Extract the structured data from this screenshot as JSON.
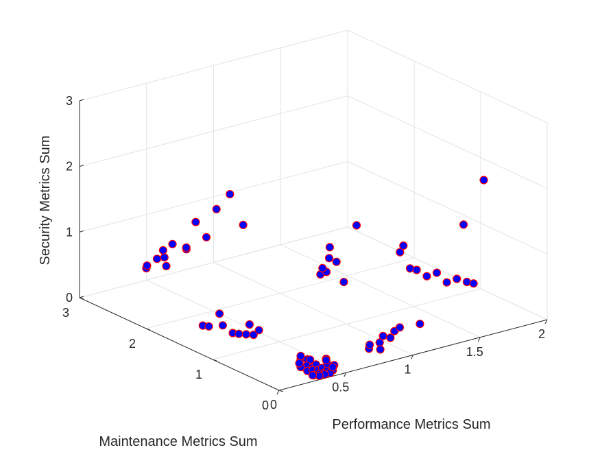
{
  "chart_data": {
    "type": "scatter3d",
    "xlabel": "Performance Metrics Sum",
    "ylabel": "Maintenance Metrics Sum",
    "zlabel": "Security Metrics Sum",
    "xlim": [
      0,
      2
    ],
    "ylim": [
      0,
      3
    ],
    "zlim": [
      0,
      3
    ],
    "xticks": [
      0,
      0.5,
      1,
      1.5,
      2
    ],
    "yticks": [
      0,
      1,
      2,
      3
    ],
    "zticks": [
      0,
      1,
      2,
      3
    ],
    "grid": true,
    "marker_face_color": "#0000ff",
    "marker_edge_color": "#ff0000",
    "points": [
      [
        0.25,
        2.5,
        0.55
      ],
      [
        0.28,
        2.55,
        0.55
      ],
      [
        0.33,
        2.5,
        0.65
      ],
      [
        0.3,
        2.3,
        0.65
      ],
      [
        0.36,
        2.45,
        0.68
      ],
      [
        0.4,
        2.55,
        0.72
      ],
      [
        0.42,
        2.45,
        0.85
      ],
      [
        0.4,
        2.2,
        0.9
      ],
      [
        0.35,
        2.1,
        1.0
      ],
      [
        0.45,
        2.0,
        1.15
      ],
      [
        0.42,
        2.1,
        1.35
      ],
      [
        0.55,
        2.05,
        1.5
      ],
      [
        0.7,
        2.15,
        1.6
      ],
      [
        0.65,
        1.85,
        1.3
      ],
      [
        0.2,
        1.55,
        0.15
      ],
      [
        0.22,
        1.5,
        0.15
      ],
      [
        0.25,
        1.35,
        0.22
      ],
      [
        0.3,
        1.5,
        0.3
      ],
      [
        0.3,
        1.3,
        0.1
      ],
      [
        0.32,
        1.25,
        0.1
      ],
      [
        0.35,
        1.2,
        0.1
      ],
      [
        0.38,
        1.15,
        0.1
      ],
      [
        0.4,
        1.25,
        0.2
      ],
      [
        0.42,
        1.15,
        0.15
      ],
      [
        0.3,
        0.28,
        0.18
      ],
      [
        0.32,
        0.32,
        0.2
      ],
      [
        0.35,
        0.28,
        0.15
      ],
      [
        0.38,
        0.3,
        0.12
      ],
      [
        0.28,
        0.22,
        0.1
      ],
      [
        0.33,
        0.25,
        0.08
      ],
      [
        0.36,
        0.22,
        0.05
      ],
      [
        0.4,
        0.25,
        0.06
      ],
      [
        0.3,
        0.18,
        0.05
      ],
      [
        0.34,
        0.18,
        0.04
      ],
      [
        0.38,
        0.18,
        0.02
      ],
      [
        0.42,
        0.2,
        0.02
      ],
      [
        0.32,
        0.12,
        0.0
      ],
      [
        0.36,
        0.12,
        0.0
      ],
      [
        0.4,
        0.12,
        0.0
      ],
      [
        0.44,
        0.15,
        0.02
      ],
      [
        0.46,
        0.2,
        0.06
      ],
      [
        0.48,
        0.26,
        0.1
      ],
      [
        0.26,
        0.2,
        0.12
      ],
      [
        0.28,
        0.26,
        0.14
      ],
      [
        0.5,
        0.3,
        0.05
      ],
      [
        0.52,
        0.22,
        0.0
      ],
      [
        0.46,
        0.12,
        0.0
      ],
      [
        0.42,
        0.08,
        0.0
      ],
      [
        0.38,
        0.08,
        0.0
      ],
      [
        0.34,
        0.08,
        0.0
      ],
      [
        0.3,
        0.1,
        0.02
      ],
      [
        0.48,
        0.16,
        0.02
      ],
      [
        0.72,
        0.1,
        0.2
      ],
      [
        0.75,
        0.15,
        0.22
      ],
      [
        0.8,
        0.1,
        0.25
      ],
      [
        0.85,
        0.15,
        0.3
      ],
      [
        0.88,
        0.1,
        0.28
      ],
      [
        0.78,
        0.05,
        0.18
      ],
      [
        0.92,
        0.12,
        0.35
      ],
      [
        0.95,
        0.1,
        0.4
      ],
      [
        0.78,
        0.95,
        0.9
      ],
      [
        0.8,
        0.9,
        0.95
      ],
      [
        0.82,
        1.0,
        0.95
      ],
      [
        0.82,
        0.9,
        1.15
      ],
      [
        0.85,
        0.85,
        1.1
      ],
      [
        0.8,
        0.85,
        1.35
      ],
      [
        0.88,
        0.8,
        0.8
      ],
      [
        0.95,
        0.75,
        1.65
      ],
      [
        1.15,
        0.5,
        1.25
      ],
      [
        1.2,
        0.55,
        1.3
      ],
      [
        1.2,
        0.45,
        1.0
      ],
      [
        1.25,
        0.45,
        0.95
      ],
      [
        1.3,
        0.4,
        0.85
      ],
      [
        1.35,
        0.35,
        0.9
      ],
      [
        1.4,
        0.3,
        0.75
      ],
      [
        1.45,
        0.25,
        0.8
      ],
      [
        1.5,
        0.2,
        0.75
      ],
      [
        1.55,
        0.2,
        0.7
      ],
      [
        1.5,
        0.25,
        1.6
      ],
      [
        1.75,
        0.45,
        2.05
      ],
      [
        1.15,
        0.2,
        0.3
      ]
    ]
  }
}
